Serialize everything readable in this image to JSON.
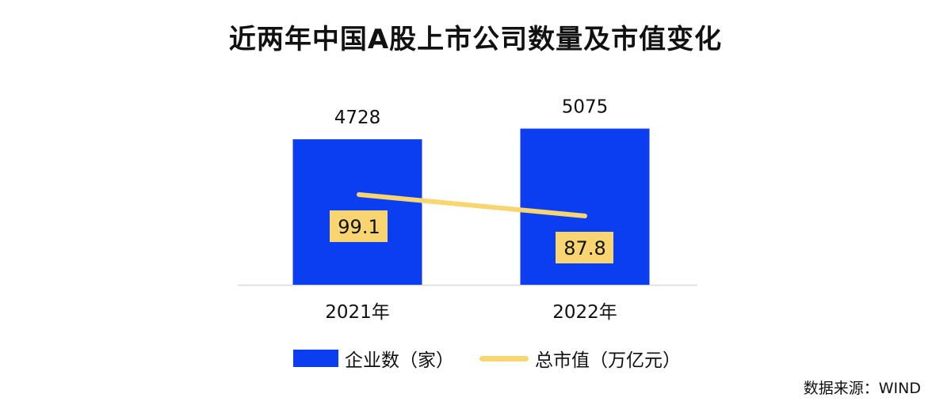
{
  "chart_data": {
    "type": "bar",
    "title": "近两年中国A股上市公司数量及市值变化",
    "categories": [
      "2021年",
      "2022年"
    ],
    "series": [
      {
        "name": "企业数（家）",
        "type": "bar",
        "values": [
          4728,
          5075
        ],
        "color": "#0a3ef0"
      },
      {
        "name": "总市值（万亿元）",
        "type": "line",
        "values": [
          99.1,
          87.8
        ],
        "color": "#f8d570"
      }
    ],
    "data_labels": {
      "bar": [
        "4728",
        "5075"
      ],
      "line": [
        "99.1",
        "87.8"
      ]
    },
    "grid": false,
    "legend": "bottom",
    "source": "数据来源：WIND"
  }
}
